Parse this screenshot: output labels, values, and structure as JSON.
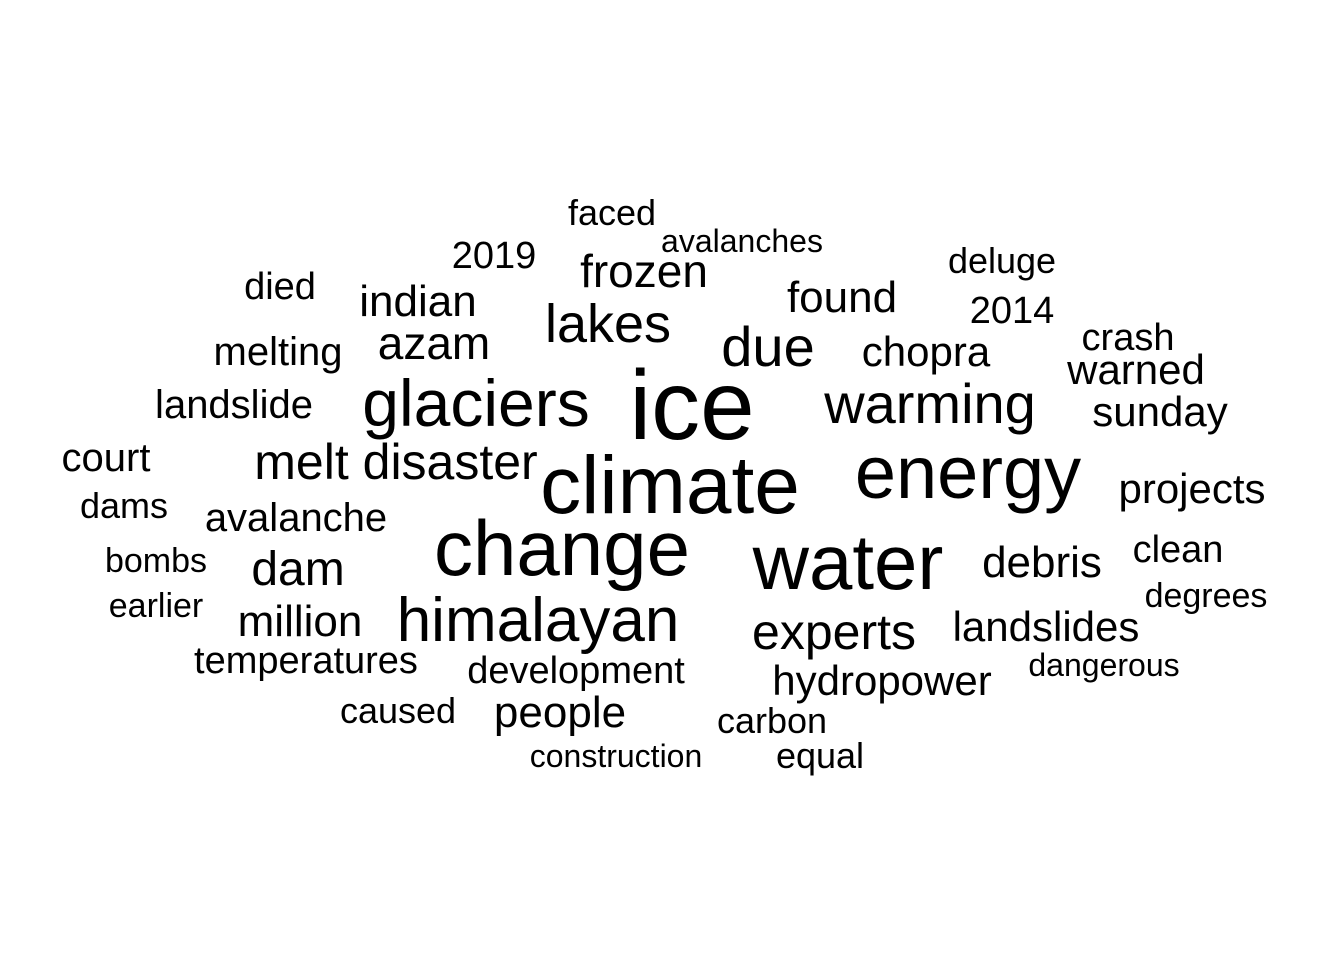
{
  "words": [
    "ice",
    "climate",
    "change",
    "water",
    "energy",
    "glaciers",
    "himalayan",
    "warming",
    "due",
    "lakes",
    "melt disaster",
    "experts",
    "frozen",
    "dam",
    "azam",
    "indian",
    "found",
    "debris",
    "million",
    "people",
    "chopra",
    "sunday",
    "landslides",
    "projects",
    "hydropower",
    "warned",
    "melting",
    "avalanche",
    "landslide",
    "court",
    "temperatures",
    "clean",
    "development",
    "2014",
    "2019",
    "died",
    "crash",
    "deluge",
    "dams",
    "faced",
    "carbon",
    "equal",
    "caused",
    "earlier",
    "bombs",
    "degrees",
    "dangerous",
    "avalanches",
    "construction"
  ]
}
